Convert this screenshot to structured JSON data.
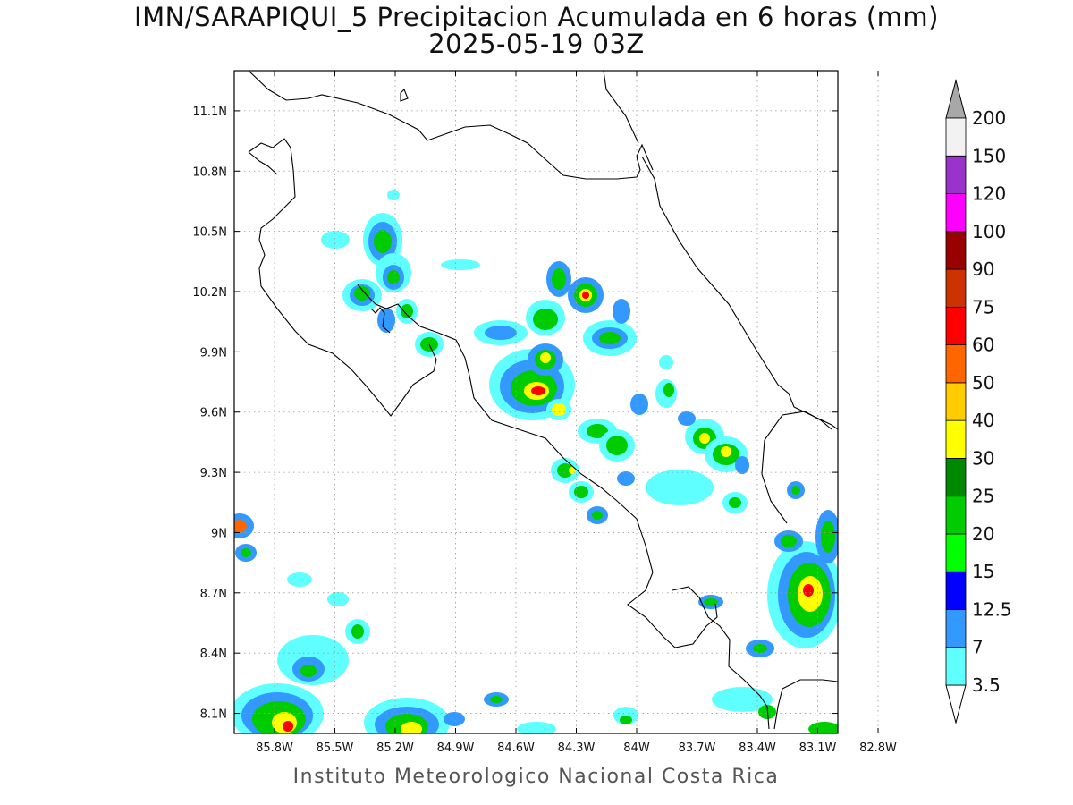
{
  "title": {
    "line1": "IMN/SARAPIQUI_5 Precipitacion Acumulada en 6 horas (mm)",
    "line2": "2025-05-19 03Z"
  },
  "credit": "Instituto Meteorologico Nacional Costa Rica",
  "map_data": {
    "lon_range": [
      -86.0,
      -83.0
    ],
    "lat_range": [
      8.0,
      11.3
    ],
    "x_ticks": [
      {
        "lon": -85.8,
        "label": "85.8W"
      },
      {
        "lon": -85.5,
        "label": "85.5W"
      },
      {
        "lon": -85.2,
        "label": "85.2W"
      },
      {
        "lon": -84.9,
        "label": "84.9W"
      },
      {
        "lon": -84.6,
        "label": "84.6W"
      },
      {
        "lon": -84.3,
        "label": "84.3W"
      },
      {
        "lon": -84.0,
        "label": "84W"
      },
      {
        "lon": -83.7,
        "label": "83.7W"
      },
      {
        "lon": -83.4,
        "label": "83.4W"
      },
      {
        "lon": -83.1,
        "label": "83.1W"
      },
      {
        "lon": -82.8,
        "label": "82.8W"
      }
    ],
    "y_ticks": [
      {
        "lat": 11.1,
        "label": "11.1N"
      },
      {
        "lat": 10.8,
        "label": "10.8N"
      },
      {
        "lat": 10.5,
        "label": "10.5N"
      },
      {
        "lat": 10.2,
        "label": "10.2N"
      },
      {
        "lat": 9.9,
        "label": "9.9N"
      },
      {
        "lat": 9.6,
        "label": "9.6N"
      },
      {
        "lat": 9.3,
        "label": "9.3N"
      },
      {
        "lat": 9.0,
        "label": "9N"
      },
      {
        "lat": 8.7,
        "label": "8.7N"
      },
      {
        "lat": 8.4,
        "label": "8.4N"
      },
      {
        "lat": 8.1,
        "label": "8.1N"
      }
    ],
    "grid": true
  },
  "colorbar": {
    "levels": [
      {
        "label": "3.5",
        "color": "#5fffff"
      },
      {
        "label": "7",
        "color": "#3399ff"
      },
      {
        "label": "12.5",
        "color": "#0000ff"
      },
      {
        "label": "15",
        "color": "#00ff00"
      },
      {
        "label": "20",
        "color": "#00cc00"
      },
      {
        "label": "25",
        "color": "#008800"
      },
      {
        "label": "30",
        "color": "#ffff00"
      },
      {
        "label": "40",
        "color": "#ffcc00"
      },
      {
        "label": "50",
        "color": "#ff6600"
      },
      {
        "label": "60",
        "color": "#ff0000"
      },
      {
        "label": "75",
        "color": "#cc3300"
      },
      {
        "label": "90",
        "color": "#990000"
      },
      {
        "label": "100",
        "color": "#ff00ff"
      },
      {
        "label": "120",
        "color": "#9933cc"
      },
      {
        "label": "150",
        "color": "#f2f2f2"
      },
      {
        "label": "200",
        "color": "#a8a8a8"
      }
    ],
    "low_arrow_color": "#ffffff",
    "high_arrow_color": "#a8a8a8"
  }
}
